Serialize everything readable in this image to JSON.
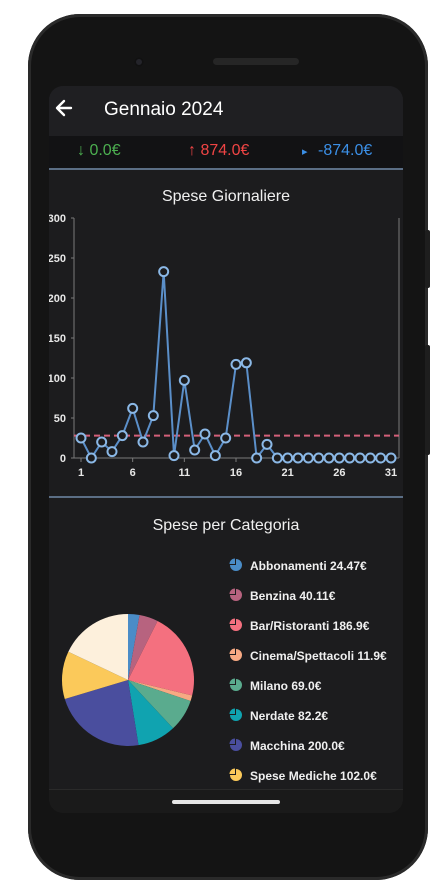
{
  "header": {
    "back_icon": "arrow-left-icon",
    "title": "Gennaio 2024"
  },
  "summary": {
    "income": {
      "arrow": "↓",
      "value": "0.0€",
      "color": "#4caf50"
    },
    "expense": {
      "arrow": "↑",
      "value": "874.0€",
      "color": "#ef4444"
    },
    "balance": {
      "arrow": "▸",
      "value": "-874.0€",
      "color": "#3b8fe6"
    }
  },
  "daily": {
    "title": "Spese Giornaliere",
    "y_ticks": [
      "300",
      "250",
      "200",
      "150",
      "100",
      "50",
      "0"
    ],
    "x_ticks": [
      "1",
      "6",
      "11",
      "16",
      "21",
      "26",
      "31"
    ]
  },
  "category": {
    "title": "Spese per Categoria",
    "legend": [
      {
        "label": "Abbonamenti 24.47€",
        "color": "#4a8cc7",
        "icon": "pie-icon"
      },
      {
        "label": "Benzina 40.11€",
        "color": "#b7637f",
        "icon": "pie-icon"
      },
      {
        "label": "Bar/Ristoranti 186.9€",
        "color": "#f4707f",
        "icon": "pie-icon"
      },
      {
        "label": "Cinema/Spettacoli 11.9€",
        "color": "#f7a983",
        "icon": "pie-icon"
      },
      {
        "label": "Milano 69.0€",
        "color": "#5aab8e",
        "icon": "pie-icon"
      },
      {
        "label": "Nerdate 82.2€",
        "color": "#10a3b0",
        "icon": "pie-icon"
      },
      {
        "label": "Macchina 200.0€",
        "color": "#4a4e9e",
        "icon": "pie-icon"
      },
      {
        "label": "Spese Mediche 102.0€",
        "color": "#fbc95a",
        "icon": "pie-icon"
      }
    ]
  },
  "chart_data": [
    {
      "type": "line",
      "title": "Spese Giornaliere",
      "x": [
        1,
        2,
        3,
        4,
        5,
        6,
        7,
        8,
        9,
        10,
        11,
        12,
        13,
        14,
        15,
        16,
        17,
        18,
        19,
        20,
        21,
        22,
        23,
        24,
        25,
        26,
        27,
        28,
        29,
        30,
        31
      ],
      "series": [
        {
          "values": [
            25,
            0,
            20,
            8,
            28,
            62,
            20,
            53,
            233,
            3,
            97,
            10,
            30,
            3,
            25,
            117,
            119,
            0,
            17,
            0,
            0,
            0,
            0,
            0,
            0,
            0,
            0,
            0,
            0,
            0,
            0
          ]
        }
      ],
      "reference_line": 28,
      "ylim": [
        0,
        300
      ],
      "colors": {
        "line": "#5b8fc9",
        "reference": "#d4607a"
      },
      "grid": false
    },
    {
      "type": "pie",
      "title": "Spese per Categoria",
      "labels": [
        "Abbonamenti",
        "Benzina",
        "Bar/Ristoranti",
        "Cinema/Spettacoli",
        "Milano",
        "Nerdate",
        "Macchina",
        "Spese Mediche",
        ""
      ],
      "values": [
        24.47,
        40.11,
        186.9,
        11.9,
        69.0,
        82.2,
        200.0,
        102.0,
        157.0
      ],
      "colors": [
        "#4a8cc7",
        "#b7637f",
        "#f4707f",
        "#f7a983",
        "#5aab8e",
        "#10a3b0",
        "#4a4e9e",
        "#fbc95a",
        "#fdf0dc"
      ]
    }
  ]
}
